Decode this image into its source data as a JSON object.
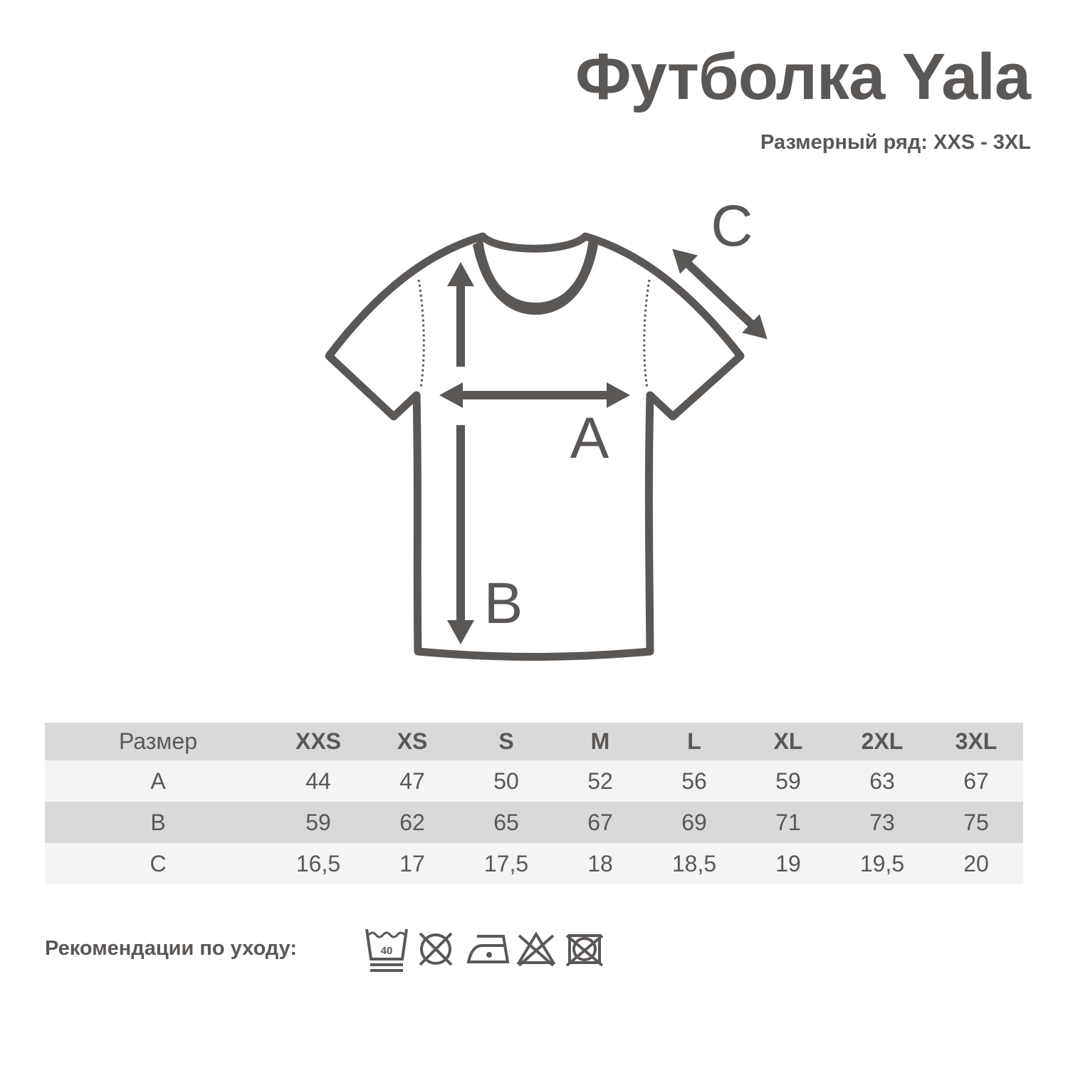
{
  "header": {
    "title": "Футболка Yala",
    "size_range": "Размерный ряд: XXS - 3XL"
  },
  "diagram": {
    "labels": {
      "a": "A",
      "b": "B",
      "c": "C"
    }
  },
  "size_table": {
    "columns": [
      "Размер",
      "XXS",
      "XS",
      "S",
      "M",
      "L",
      "XL",
      "2XL",
      "3XL"
    ],
    "rows": [
      [
        "A",
        "44",
        "47",
        "50",
        "52",
        "56",
        "59",
        "63",
        "67"
      ],
      [
        "B",
        "59",
        "62",
        "65",
        "67",
        "69",
        "71",
        "73",
        "75"
      ],
      [
        "C",
        "16,5",
        "17",
        "17,5",
        "18",
        "18,5",
        "19",
        "19,5",
        "20"
      ]
    ]
  },
  "care": {
    "label": "Рекомендации по уходу:",
    "wash_temp": "40",
    "icons": [
      "wash-40-gentle-icon",
      "no-tumble-dry-icon",
      "iron-low-icon",
      "no-bleach-icon",
      "no-dry-clean-icon"
    ]
  },
  "colors": {
    "ink": "#5b5755",
    "row_dark": "#d9d9d9",
    "row_light": "#f4f4f4"
  }
}
